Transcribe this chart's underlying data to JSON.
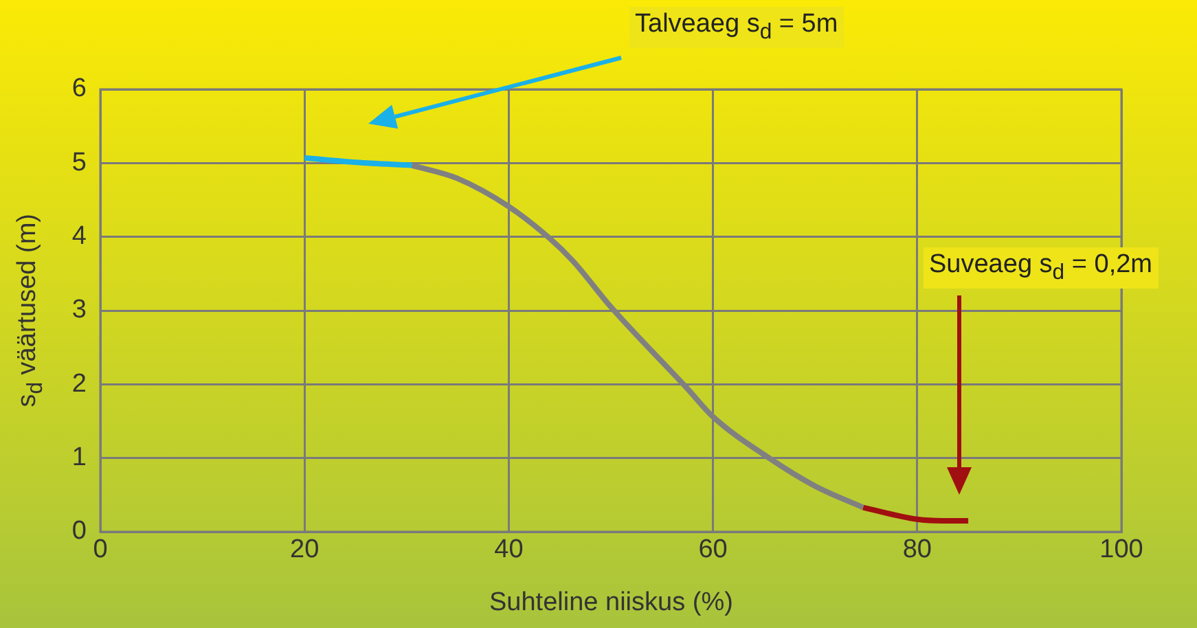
{
  "chart_data": {
    "type": "line",
    "xlabel": "Suhteline niiskus (%)",
    "ylabel": "s$_{d}$ väärtused (m)",
    "series": [
      {
        "color": "#1ab0e8",
        "x": [
          20,
          25,
          30.5
        ],
        "values": [
          5.07,
          5.01,
          4.97
        ]
      },
      {
        "color": "#808080",
        "x": [
          30.5,
          35,
          40,
          44,
          46.3,
          50,
          57.5,
          60,
          65.5,
          70,
          74.7
        ],
        "values": [
          4.97,
          4.79,
          4.41,
          3.98,
          3.67,
          3.05,
          1.94,
          1.56,
          1.0,
          0.62,
          0.33
        ]
      },
      {
        "color": "#a01010",
        "x": [
          74.7,
          80,
          82.5,
          85
        ],
        "values": [
          0.33,
          0.17,
          0.15,
          0.15
        ]
      }
    ],
    "annotations": [
      "Talveaeg s$_{d}$ = 5m",
      "Suveaeg s$_{d}$ = 0,2m"
    ],
    "xlim": [
      0,
      100
    ],
    "xticks": [
      0,
      20,
      40,
      60,
      80,
      100
    ],
    "ylim": [
      0,
      6
    ],
    "yticks": [
      0,
      1,
      2,
      3,
      4,
      5,
      6
    ],
    "grid": true,
    "marker": "none",
    "line_style": "solid"
  }
}
